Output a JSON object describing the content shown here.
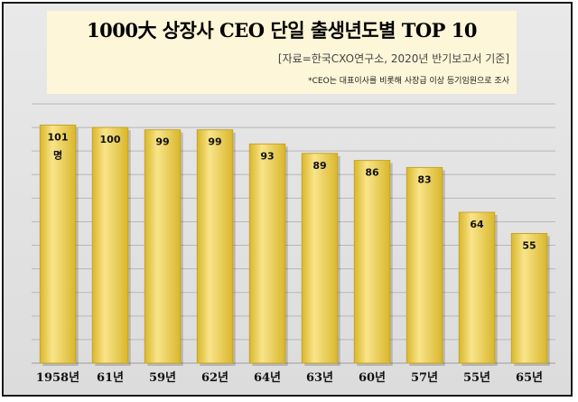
{
  "header": {
    "title": "1000大 상장사 CEO 단일 출생년도별 TOP 10",
    "source": "[자료=한국CXO연구소, 2020년 반기보고서 기준]",
    "note": "*CEO는 대표이사를 비롯해 사장급 이상 등기임원으로 조사"
  },
  "colors": {
    "bar": "#f9e48a",
    "bar_edge": "#d9b72c",
    "grid": "#b8b8b8"
  },
  "chart_data": {
    "type": "bar",
    "title": "1000大 상장사 CEO 단일 출생년도별 TOP 10",
    "categories": [
      "1958년",
      "61년",
      "59년",
      "62년",
      "64년",
      "63년",
      "60년",
      "57년",
      "55년",
      "65년"
    ],
    "values": [
      101,
      100,
      99,
      99,
      93,
      89,
      86,
      83,
      64,
      55
    ],
    "data_labels": [
      "101\n명",
      "100",
      "99",
      "99",
      "93",
      "89",
      "86",
      "83",
      "64",
      "55"
    ],
    "ylim": [
      0,
      110
    ],
    "grid": true,
    "legend": "none"
  }
}
